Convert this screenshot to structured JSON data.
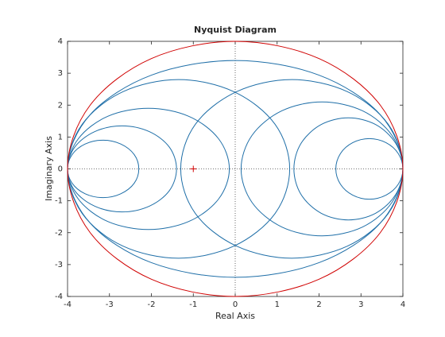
{
  "chart_data": {
    "type": "line",
    "title": "Nyquist Diagram",
    "x_label": "Real Axis",
    "y_label": "Imaginary Axis",
    "xlim": [
      -4,
      4
    ],
    "ylim": [
      -4,
      4
    ],
    "xticks": [
      -4,
      -3,
      -2,
      -1,
      0,
      1,
      2,
      3,
      4
    ],
    "yticks": [
      -4,
      -3,
      -2,
      -1,
      0,
      1,
      2,
      3,
      4
    ],
    "grid": false,
    "zero_lines": true,
    "closed": true,
    "series": [
      {
        "color": "#1f6fa8",
        "x": [
          4,
          3.46,
          2,
          0,
          -2,
          -3.46,
          -4,
          -3.46,
          -2,
          0,
          2,
          3.46
        ],
        "y": [
          0,
          1.7,
          2.94,
          3.4,
          2.94,
          1.7,
          0,
          -1.7,
          -2.94,
          -3.4,
          -2.94,
          -1.7
        ]
      },
      {
        "color": "#1f6fa8",
        "x": [
          4,
          3.65,
          2.68,
          1.35,
          0.03,
          -0.95,
          -1.3,
          -0.95,
          0.03,
          1.35,
          2.68,
          3.65
        ],
        "y": [
          0,
          1.4,
          2.42,
          2.8,
          2.42,
          1.4,
          0,
          -1.4,
          -2.42,
          -2.8,
          -2.42,
          -1.4
        ]
      },
      {
        "color": "#1f6fa8",
        "x": [
          -4,
          -3.65,
          -2.68,
          -1.35,
          -0.03,
          0.95,
          1.3,
          0.95,
          -0.03,
          -1.35,
          -2.68,
          -3.65
        ],
        "y": [
          0,
          1.4,
          2.42,
          2.8,
          2.42,
          1.4,
          0,
          -1.4,
          -2.42,
          -2.8,
          -2.42,
          -1.4
        ]
      },
      {
        "color": "#1f6fa8",
        "x": [
          -0.14,
          -0.4,
          -1.11,
          -2.07,
          -3.04,
          -3.74,
          -4,
          -3.74,
          -3.04,
          -2.07,
          -1.11,
          -0.4
        ],
        "y": [
          0,
          0.95,
          1.65,
          1.9,
          1.65,
          0.95,
          0,
          -0.95,
          -1.65,
          -1.9,
          -1.65,
          -0.95
        ]
      },
      {
        "color": "#1f6fa8",
        "x": [
          4,
          3.74,
          3.04,
          2.07,
          1.11,
          0.4,
          0.14,
          0.4,
          1.11,
          2.07,
          3.04,
          3.74
        ],
        "y": [
          0,
          1.05,
          1.82,
          2.1,
          1.82,
          1.05,
          0,
          -1.05,
          -1.82,
          -2.1,
          -1.82,
          -1.05
        ]
      },
      {
        "color": "#1f6fa8",
        "x": [
          -1.4,
          -1.57,
          -2.05,
          -2.7,
          -3.35,
          -3.83,
          -4,
          -3.83,
          -3.35,
          -2.7,
          -2.05,
          -1.57
        ],
        "y": [
          0,
          0.68,
          1.17,
          1.35,
          1.17,
          0.68,
          0,
          -0.68,
          -1.17,
          -1.35,
          -1.17,
          -0.68
        ]
      },
      {
        "color": "#1f6fa8",
        "x": [
          4,
          3.83,
          3.35,
          2.7,
          2.05,
          1.57,
          1.4,
          1.57,
          2.05,
          2.7,
          3.35,
          3.83
        ],
        "y": [
          0,
          0.8,
          1.39,
          1.6,
          1.39,
          0.8,
          0,
          -0.8,
          -1.39,
          -1.6,
          -1.39,
          -0.8
        ]
      },
      {
        "color": "#1f6fa8",
        "x": [
          -2.3,
          -2.41,
          -2.73,
          -3.15,
          -3.58,
          -3.89,
          -4,
          -3.89,
          -3.58,
          -3.15,
          -2.73,
          -2.41
        ],
        "y": [
          0,
          0.45,
          0.78,
          0.9,
          0.78,
          0.45,
          0,
          -0.45,
          -0.78,
          -0.9,
          -0.78,
          -0.45
        ]
      },
      {
        "color": "#1f6fa8",
        "x": [
          4,
          3.89,
          3.6,
          3.2,
          2.8,
          2.51,
          2.4,
          2.51,
          2.8,
          3.2,
          3.6,
          3.89
        ],
        "y": [
          0,
          0.48,
          0.82,
          0.95,
          0.82,
          0.48,
          0,
          -0.48,
          -0.82,
          -0.95,
          -0.82,
          -0.48
        ]
      },
      {
        "color": "#d00000",
        "x": [
          4,
          3.46,
          2,
          0,
          -2,
          -3.46,
          -4,
          -3.46,
          -2,
          0,
          2,
          3.46
        ],
        "y": [
          0,
          2,
          3.46,
          4,
          3.46,
          2,
          0,
          -2,
          -3.46,
          -4,
          -3.46,
          -2
        ]
      }
    ],
    "critical_point": {
      "x": -1,
      "y": 0,
      "color": "#d00000"
    }
  }
}
